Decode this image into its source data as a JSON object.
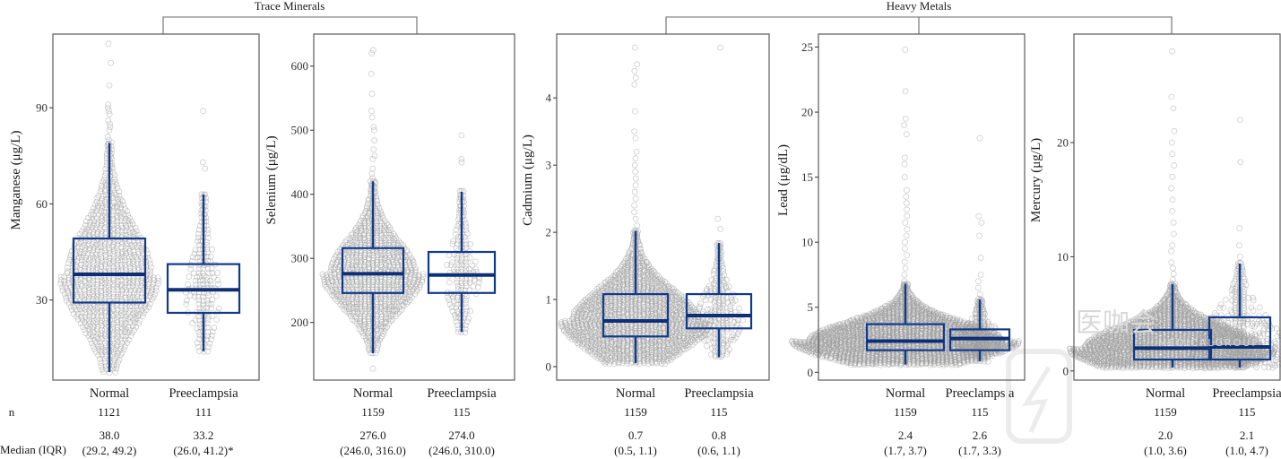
{
  "figure": {
    "row_labels": {
      "n": "n",
      "median_iqr": "Median (IQR)"
    },
    "groups": [
      {
        "title": "Trace Minerals",
        "panels": [
          0,
          1
        ]
      },
      {
        "title": "Heavy Metals",
        "panels": [
          2,
          3,
          4
        ]
      }
    ],
    "colors": {
      "box": "#103a8c",
      "median": "#0d2f78",
      "dots": "#9a9a9a",
      "frame": "#5a5a5a"
    },
    "watermark": {
      "text": "医咖会",
      "subtext": "MEDICALGROUP"
    }
  },
  "chart_data": [
    {
      "type": "box",
      "title": "Manganese",
      "ylabel": "Manganese (μg/L)",
      "ylim": [
        5,
        113
      ],
      "yticks": [
        30,
        60,
        90
      ],
      "categories": [
        "Normal",
        "Preeclampsia"
      ],
      "n": [
        "1121",
        "111"
      ],
      "median_text": [
        "38.0",
        "33.2"
      ],
      "iqr_text": [
        "(29.2, 49.2)",
        "(26.0, 41.2)*"
      ],
      "boxes": [
        {
          "q1": 29.2,
          "median": 38.0,
          "q3": 49.2,
          "whisker_low": 7.5,
          "whisker_high": 79
        },
        {
          "q1": 26.0,
          "median": 33.2,
          "q3": 41.2,
          "whisker_low": 14,
          "whisker_high": 63
        }
      ],
      "outliers_high": [
        [
          80,
          81,
          83,
          84,
          85,
          86,
          88,
          89,
          90,
          91,
          97,
          104,
          110
        ],
        [
          71,
          73,
          89
        ]
      ],
      "max_spread": [
        0.95,
        0.35
      ]
    },
    {
      "type": "box",
      "title": "Selenium",
      "ylabel": "Selenium (μg/L)",
      "ylim": [
        110,
        650
      ],
      "yticks": [
        200,
        300,
        400,
        500,
        600
      ],
      "categories": [
        "Normal",
        "Preeclampsia"
      ],
      "n": [
        "1159",
        "115"
      ],
      "median_text": [
        "276.0",
        "274.0"
      ],
      "iqr_text": [
        "(246.0, 316.0)",
        "(246.0, 310.0)"
      ],
      "boxes": [
        {
          "q1": 246.0,
          "median": 276.0,
          "q3": 316.0,
          "whisker_low": 152,
          "whisker_high": 420
        },
        {
          "q1": 246.0,
          "median": 274.0,
          "q3": 310.0,
          "whisker_low": 185,
          "whisker_high": 404
        }
      ],
      "outliers_high": [
        [
          425,
          432,
          440,
          455,
          460,
          470,
          484,
          500,
          505,
          520,
          530,
          557,
          588,
          620,
          625
        ],
        [
          450,
          455,
          492
        ]
      ],
      "outliers_low": [
        [
          128
        ],
        []
      ],
      "max_spread": [
        1.0,
        0.35
      ]
    },
    {
      "type": "box",
      "title": "Cadmium",
      "ylabel": "Cadmium (μg/L)",
      "ylim": [
        -0.2,
        4.95
      ],
      "yticks": [
        0,
        1,
        2,
        3,
        4
      ],
      "categories": [
        "Normal",
        "Preeclampsia"
      ],
      "n": [
        "1159",
        "115"
      ],
      "median_text": [
        "0.7",
        "0.8"
      ],
      "iqr_text": [
        "(0.5, 1.1)",
        "(0.6, 1.1)"
      ],
      "boxes": [
        {
          "q1": 0.45,
          "median": 0.68,
          "q3": 1.08,
          "whisker_low": 0.05,
          "whisker_high": 2.02
        },
        {
          "q1": 0.57,
          "median": 0.76,
          "q3": 1.08,
          "whisker_low": 0.14,
          "whisker_high": 1.84
        }
      ],
      "outliers_high": [
        [
          2.1,
          2.2,
          2.3,
          2.4,
          2.5,
          2.6,
          2.7,
          2.8,
          2.9,
          3.0,
          3.1,
          3.2,
          3.4,
          3.5,
          3.8,
          4.2,
          4.3,
          4.4,
          4.5,
          4.75
        ],
        [
          2.05,
          2.2,
          4.75
        ]
      ],
      "max_spread": [
        1.4,
        0.45
      ]
    },
    {
      "type": "box",
      "title": "Lead",
      "ylabel": "Lead (μg/dL)",
      "ylim": [
        -0.6,
        26
      ],
      "yticks": [
        0,
        5,
        10,
        15,
        20,
        25
      ],
      "categories": [
        "Normal",
        "Preeclamps a"
      ],
      "n": [
        "1159",
        "115"
      ],
      "median_text": [
        "2.4",
        "2.6"
      ],
      "iqr_text": [
        "(1.7, 3.7)",
        "(1.7, 3.3)"
      ],
      "boxes": [
        {
          "q1": 1.7,
          "median": 2.4,
          "q3": 3.7,
          "whisker_low": 0.6,
          "whisker_high": 6.8
        },
        {
          "q1": 1.7,
          "median": 2.6,
          "q3": 3.3,
          "whisker_low": 0.85,
          "whisker_high": 5.6
        }
      ],
      "outliers_high": [
        [
          7,
          7.5,
          8,
          8.5,
          9,
          9.5,
          10,
          10.5,
          11,
          11.5,
          12,
          12.5,
          13,
          13.5,
          14,
          15,
          16,
          16.5,
          18.3,
          19,
          19.5,
          21.6,
          24.8
        ],
        [
          6,
          6.5,
          7,
          7.5,
          8.8,
          10.5,
          11.5,
          12,
          18
        ]
      ],
      "max_spread": [
        2.2,
        0.45
      ]
    },
    {
      "type": "box",
      "title": "Mercury",
      "ylabel": "Mercury (μg/L)",
      "ylim": [
        -0.8,
        29.5
      ],
      "yticks": [
        0,
        10,
        20
      ],
      "categories": [
        "Normal",
        "Preeclampsia"
      ],
      "n": [
        "1159",
        "115"
      ],
      "median_text": [
        "2.0",
        "2.1"
      ],
      "iqr_text": [
        "(1.0, 3.6)",
        "(1.0, 4.7)"
      ],
      "boxes": [
        {
          "q1": 1.0,
          "median": 2.0,
          "q3": 3.6,
          "whisker_low": 0.3,
          "whisker_high": 7.6
        },
        {
          "q1": 1.0,
          "median": 2.1,
          "q3": 4.7,
          "whisker_low": 0.3,
          "whisker_high": 9.4
        }
      ],
      "outliers_high": [
        [
          8,
          8.5,
          9,
          9.5,
          10.5,
          11,
          12,
          13,
          14,
          15,
          16,
          17,
          18,
          19,
          20,
          21,
          23,
          24,
          28
        ],
        [
          10,
          11,
          12.5,
          18.3,
          22
        ]
      ],
      "max_spread": [
        2.0,
        1.0
      ]
    }
  ]
}
